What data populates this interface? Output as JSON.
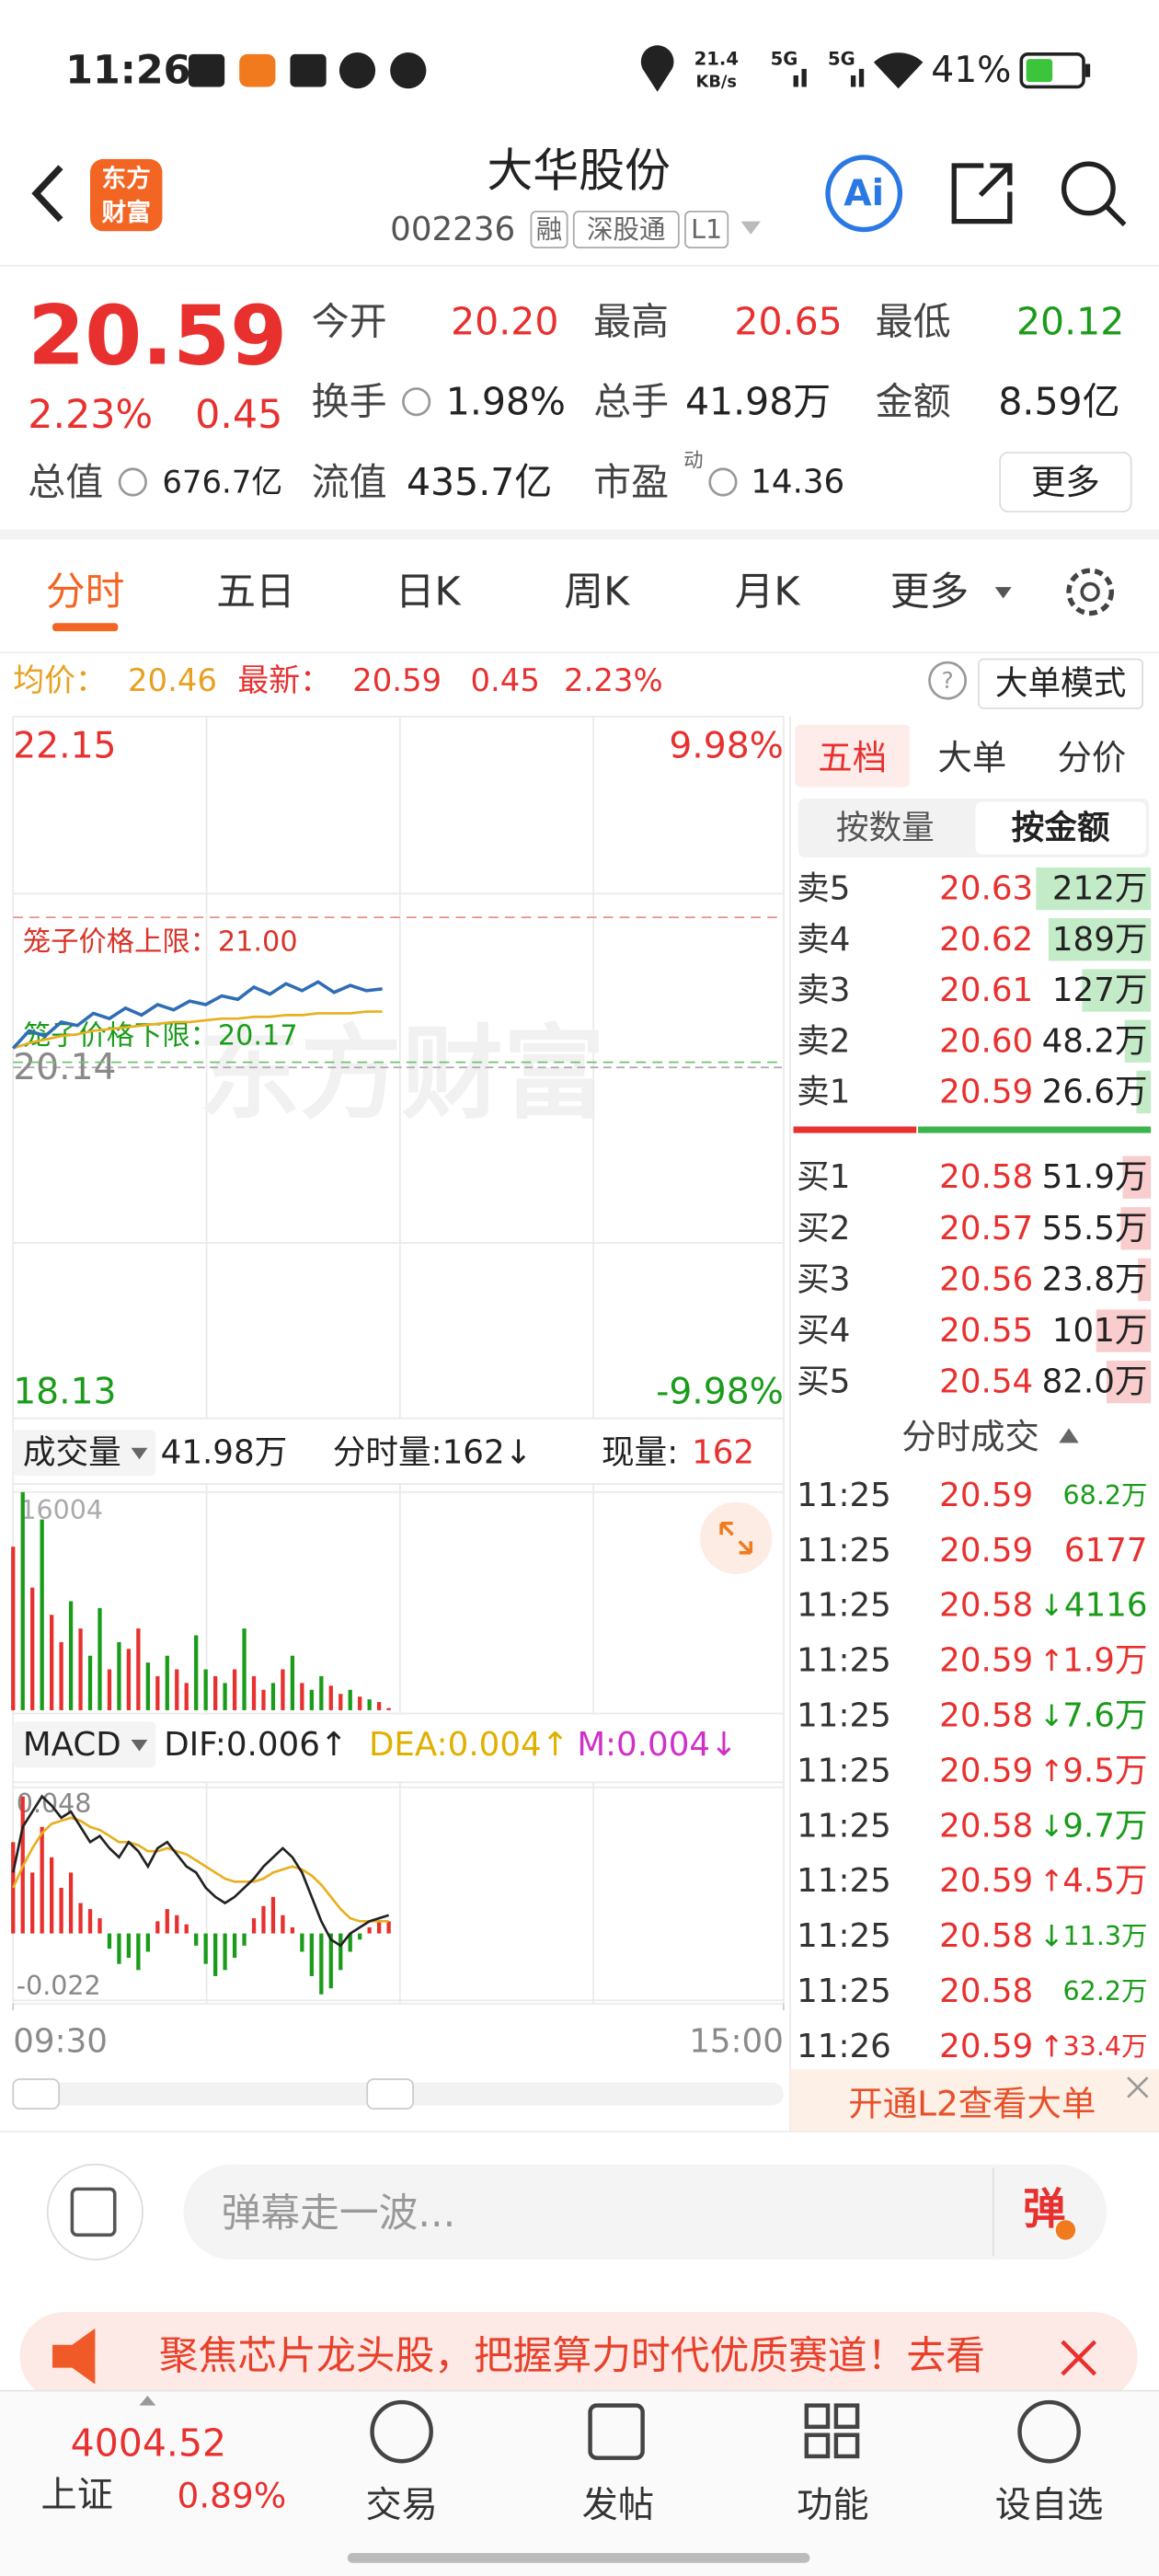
{
  "status_bar": {
    "time": "11:26",
    "net_speed": "21.4",
    "net_unit": "KB/s",
    "signal_1": "5G",
    "signal_2": "5G",
    "battery": "41%"
  },
  "header": {
    "logo": [
      "东方",
      "财富"
    ],
    "title": "大华股份",
    "code": "002236",
    "tags": [
      "融",
      "深股通",
      "L1"
    ],
    "ai_button": "Ai"
  },
  "quote": {
    "price": "20.59",
    "change_pct": "2.23%",
    "change": "0.45",
    "stats": [
      {
        "label": "今开",
        "value": "20.20"
      },
      {
        "label": "最高",
        "value": "20.65"
      },
      {
        "label": "最低",
        "value": "20.12"
      },
      {
        "label": "换手",
        "value": "1.98%"
      },
      {
        "label": "总手",
        "value": "41.98万"
      },
      {
        "label": "金额",
        "value": "8.59亿"
      },
      {
        "label": "总值",
        "value": "676.7亿"
      },
      {
        "label": "流值",
        "value": "435.7亿"
      },
      {
        "label": "市盈",
        "superscript": "动",
        "value": "14.36"
      }
    ],
    "more": "更多"
  },
  "tabs": [
    "分时",
    "五日",
    "日K",
    "周K",
    "月K",
    "更多"
  ],
  "info_bar": {
    "avg_label": "均价：",
    "avg": "20.46",
    "latest_label": "最新：",
    "latest": "20.59",
    "change": "0.45",
    "change_pct": "2.23%",
    "mode_button": "大单模式"
  },
  "intraday": {
    "type": "line",
    "watermark": "东方财富",
    "xlim": [
      0,
      240
    ],
    "xticks": [
      {
        "value": 0,
        "label": "09:30"
      },
      {
        "value": 240,
        "label": "15:00"
      }
    ],
    "ylim": [
      18.13,
      22.15
    ],
    "yticks": [
      22.15,
      20.14,
      18.13
    ],
    "pct_labels": [
      "9.98%",
      "-9.98%"
    ],
    "limit_up": {
      "value": 21,
      "label": "笼子价格上限：21.00"
    },
    "limit_down": {
      "value": 20.17,
      "label": "笼子价格下限：20.17"
    },
    "x": [
      0,
      5,
      10,
      15,
      20,
      25,
      30,
      35,
      40,
      45,
      50,
      55,
      60,
      65,
      70,
      75,
      80,
      85,
      90,
      95,
      100,
      105,
      110,
      115
    ],
    "price": {
      "color": "#2f6db5",
      "values": [
        20.25,
        20.35,
        20.32,
        20.4,
        20.38,
        20.45,
        20.42,
        20.48,
        20.44,
        20.5,
        20.47,
        20.52,
        20.5,
        20.55,
        20.53,
        20.6,
        20.56,
        20.62,
        20.58,
        20.63,
        20.57,
        20.61,
        20.58,
        20.59
      ]
    },
    "average": {
      "color": "#e8b020",
      "values": [
        20.25,
        20.28,
        20.3,
        20.32,
        20.33,
        20.35,
        20.36,
        20.37,
        20.38,
        20.39,
        20.4,
        20.4,
        20.41,
        20.42,
        20.42,
        20.43,
        20.43,
        20.44,
        20.44,
        20.45,
        20.45,
        20.45,
        20.46,
        20.46
      ]
    }
  },
  "volume": {
    "label": "成交量",
    "total": "41.98万",
    "minute_volume": "分时量:162↓",
    "current_label": "现量:",
    "current": "162",
    "ylim": [
      0,
      16004
    ],
    "yticks": [
      16004
    ],
    "x": [
      0,
      3,
      6,
      9,
      12,
      15,
      18,
      21,
      24,
      27,
      30,
      33,
      36,
      39,
      42,
      45,
      48,
      51,
      54,
      57,
      60,
      63,
      66,
      69,
      72,
      75,
      78,
      81,
      84,
      87,
      90,
      93,
      96,
      99,
      102,
      105,
      108,
      111,
      114,
      117
    ],
    "values": [
      12000,
      16004,
      9000,
      14000,
      7000,
      5000,
      8000,
      6000,
      4000,
      7500,
      3000,
      5000,
      4500,
      6000,
      3500,
      2500,
      4000,
      3000,
      2000,
      5500,
      3000,
      2500,
      2000,
      3000,
      6000,
      2500,
      1500,
      2000,
      3000,
      4000,
      2000,
      1500,
      2500,
      1800,
      1200,
      1500,
      1000,
      800,
      600,
      162
    ],
    "colors": [
      "#e8312f",
      "#1a9c1a",
      "#e8312f",
      "#1a9c1a",
      "#e8312f",
      "#e8312f",
      "#1a9c1a",
      "#e8312f",
      "#1a9c1a",
      "#1a9c1a",
      "#e8312f",
      "#1a9c1a",
      "#e8312f",
      "#e8312f",
      "#1a9c1a",
      "#e8312f",
      "#1a9c1a",
      "#e8312f",
      "#e8312f",
      "#1a9c1a",
      "#1a9c1a",
      "#e8312f",
      "#1a9c1a",
      "#e8312f",
      "#1a9c1a",
      "#e8312f",
      "#e8312f",
      "#1a9c1a",
      "#e8312f",
      "#1a9c1a",
      "#e8312f",
      "#1a9c1a",
      "#1a9c1a",
      "#e8312f",
      "#e8312f",
      "#1a9c1a",
      "#e8312f",
      "#1a9c1a",
      "#e8312f",
      "#e8312f"
    ]
  },
  "macd": {
    "label": "MACD",
    "dif": "DIF:0.006↑",
    "dea": "DEA:0.004↑",
    "m": "M:0.004↓",
    "ylim": [
      -0.022,
      0.048
    ],
    "yticks": [
      0.048,
      -0.022
    ],
    "x": [
      0,
      3,
      6,
      9,
      12,
      15,
      18,
      21,
      24,
      27,
      30,
      33,
      36,
      39,
      42,
      45,
      48,
      51,
      54,
      57,
      60,
      63,
      66,
      69,
      72,
      75,
      78,
      81,
      84,
      87,
      90,
      93,
      96,
      99,
      102,
      105,
      108,
      111,
      114,
      117
    ],
    "dif_values": [
      0.02,
      0.035,
      0.04,
      0.045,
      0.042,
      0.038,
      0.04,
      0.035,
      0.03,
      0.032,
      0.028,
      0.025,
      0.03,
      0.027,
      0.022,
      0.028,
      0.03,
      0.026,
      0.022,
      0.02,
      0.015,
      0.012,
      0.01,
      0.012,
      0.015,
      0.018,
      0.022,
      0.025,
      0.028,
      0.025,
      0.02,
      0.012,
      0.004,
      -0.002,
      -0.004,
      0,
      0.002,
      0.004,
      0.005,
      0.006
    ],
    "dea_values": [
      0.015,
      0.022,
      0.028,
      0.033,
      0.036,
      0.037,
      0.038,
      0.037,
      0.035,
      0.034,
      0.032,
      0.03,
      0.03,
      0.029,
      0.027,
      0.027,
      0.028,
      0.027,
      0.026,
      0.024,
      0.022,
      0.02,
      0.018,
      0.017,
      0.017,
      0.017,
      0.018,
      0.02,
      0.021,
      0.022,
      0.021,
      0.019,
      0.016,
      0.012,
      0.008,
      0.005,
      0.004,
      0.004,
      0.004,
      0.004
    ],
    "histogram": [
      0.03,
      0.045,
      0.02,
      0.035,
      0.025,
      0.015,
      0.02,
      0.01,
      0.008,
      0.005,
      -0.005,
      -0.01,
      -0.008,
      -0.012,
      -0.006,
      0.004,
      0.008,
      0.006,
      0.003,
      -0.004,
      -0.01,
      -0.014,
      -0.012,
      -0.008,
      -0.004,
      0.005,
      0.009,
      0.012,
      0.006,
      0.002,
      -0.006,
      -0.014,
      -0.02,
      -0.018,
      -0.012,
      -0.006,
      -0.002,
      0.002,
      0.004,
      0.004
    ],
    "colors": {
      "dif": "#222222",
      "dea": "#e8b020",
      "up": "#e8312f",
      "down": "#1a9c1a"
    }
  },
  "order_book": {
    "tabs": [
      "五档",
      "大单",
      "分价"
    ],
    "subtabs": [
      "按数量",
      "按金额"
    ],
    "asks": [
      {
        "label": "卖5",
        "price": "20.63",
        "amount": {
          "value": 212,
          "label": "212万"
        }
      },
      {
        "label": "卖4",
        "price": "20.62",
        "amount": {
          "value": 189,
          "label": "189万"
        }
      },
      {
        "label": "卖3",
        "price": "20.61",
        "amount": {
          "value": 127,
          "label": "127万"
        }
      },
      {
        "label": "卖2",
        "price": "20.60",
        "amount": {
          "value": 48.2,
          "label": "48.2万"
        }
      },
      {
        "label": "卖1",
        "price": "20.59",
        "amount": {
          "value": 26.6,
          "label": "26.6万"
        }
      }
    ],
    "bids": [
      {
        "label": "买1",
        "price": "20.58",
        "amount": {
          "value": 51.9,
          "label": "51.9万"
        }
      },
      {
        "label": "买2",
        "price": "20.57",
        "amount": {
          "value": 55.5,
          "label": "55.5万"
        }
      },
      {
        "label": "买3",
        "price": "20.56",
        "amount": {
          "value": 23.8,
          "label": "23.8万"
        }
      },
      {
        "label": "买4",
        "price": "20.55",
        "amount": {
          "value": 101,
          "label": "101万"
        }
      },
      {
        "label": "买5",
        "price": "20.54",
        "amount": {
          "value": 82,
          "label": "82.0万"
        }
      }
    ]
  },
  "trades": {
    "title": "分时成交",
    "rows": [
      {
        "time": "11:25",
        "price": "20.59",
        "volume": "68.2万",
        "color": "#1a9c1a"
      },
      {
        "time": "11:25",
        "price": "20.59",
        "volume": "6177",
        "color": "#e8312f"
      },
      {
        "time": "11:25",
        "price": "20.58",
        "arrow": "↓",
        "volume": "4116",
        "color": "#1a9c1a"
      },
      {
        "time": "11:25",
        "price": "20.59",
        "arrow": "↑",
        "volume": "1.9万",
        "color": "#e8312f"
      },
      {
        "time": "11:25",
        "price": "20.58",
        "arrow": "↓",
        "volume": "7.6万",
        "color": "#1a9c1a"
      },
      {
        "time": "11:25",
        "price": "20.59",
        "arrow": "↑",
        "volume": "9.5万",
        "color": "#e8312f"
      },
      {
        "time": "11:25",
        "price": "20.58",
        "arrow": "↓",
        "volume": "9.7万",
        "color": "#1a9c1a"
      },
      {
        "time": "11:25",
        "price": "20.59",
        "arrow": "↑",
        "volume": "4.5万",
        "color": "#e8312f"
      },
      {
        "time": "11:25",
        "price": "20.58",
        "arrow": "↓",
        "volume": "11.3万",
        "color": "#1a9c1a"
      },
      {
        "time": "11:25",
        "price": "20.58",
        "volume": "62.2万",
        "color": "#1a9c1a"
      },
      {
        "time": "11:26",
        "price": "20.59",
        "arrow": "↑",
        "volume": "33.4万",
        "color": "#e8312f"
      }
    ]
  },
  "l2_banner": "开通L2查看大单",
  "comment": {
    "placeholder": "弹幕走一波...",
    "send": "弹"
  },
  "ad": "聚焦芯片龙头股，把握算力时代优质赛道！去看",
  "bottom_nav": {
    "index": {
      "value": "4004.52",
      "name": "上证",
      "change_pct": "0.89%"
    },
    "items": [
      "交易",
      "发帖",
      "功能",
      "设自选"
    ]
  }
}
